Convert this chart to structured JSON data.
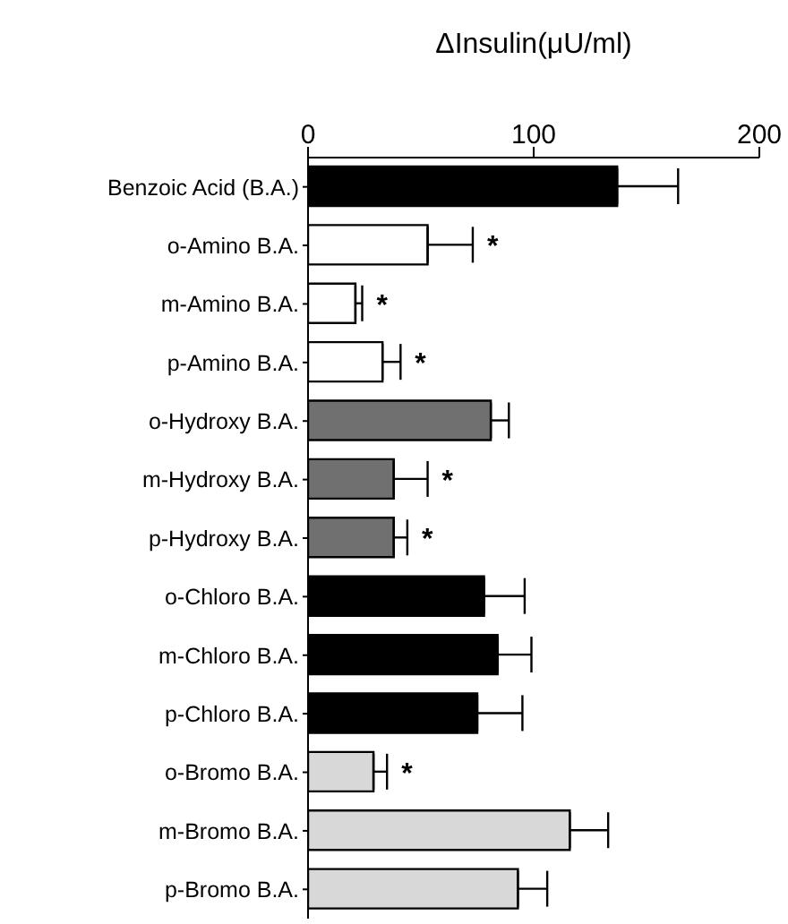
{
  "chart_data": {
    "type": "bar",
    "orientation": "horizontal",
    "xlabel": "ΔInsulin(μU/ml)",
    "categories": [
      "Benzoic Acid (B.A.)",
      "o-Amino  B.A.",
      "m-Amino  B.A.",
      "p-Amino  B.A.",
      "o-Hydroxy  B.A.",
      "m-Hydroxy  B.A.",
      "p-Hydroxy  B.A.",
      "o-Chloro  B.A.",
      "m-Chloro  B.A.",
      "p-Chloro  B.A.",
      "o-Bromo  B.A.",
      "m-Bromo  B.A.",
      "p-Bromo  B.A."
    ],
    "values": [
      137,
      53,
      21,
      33,
      81,
      38,
      38,
      78,
      84,
      75,
      29,
      116,
      93
    ],
    "errors": [
      [
        137,
        164
      ],
      [
        53,
        73
      ],
      [
        21,
        24
      ],
      [
        33,
        41
      ],
      [
        81,
        89
      ],
      [
        38,
        53
      ],
      [
        38,
        44
      ],
      [
        78,
        96
      ],
      [
        84,
        99
      ],
      [
        75,
        95
      ],
      [
        29,
        35
      ],
      [
        116,
        133
      ],
      [
        93,
        106
      ]
    ],
    "colors": [
      "#000000",
      "#ffffff",
      "#ffffff",
      "#ffffff",
      "#707070",
      "#707070",
      "#707070",
      "#000000",
      "#000000",
      "#000000",
      "#d8d8d8",
      "#d8d8d8",
      "#d8d8d8"
    ],
    "xlim": [
      0,
      200
    ],
    "xticks": [
      0,
      100,
      200
    ],
    "grid": false,
    "legend": false,
    "annotations": [
      {
        "text": "*",
        "x": 73,
        "y": "o-Amino  B.A."
      },
      {
        "text": "*",
        "x": 24,
        "y": "m-Amino  B.A."
      },
      {
        "text": "*",
        "x": 41,
        "y": "p-Amino  B.A."
      },
      {
        "text": "*",
        "x": 53,
        "y": "m-Hydroxy  B.A."
      },
      {
        "text": "*",
        "x": 44,
        "y": "p-Hydroxy  B.A."
      },
      {
        "text": "*",
        "x": 35,
        "y": "o-Bromo  B.A."
      }
    ]
  }
}
